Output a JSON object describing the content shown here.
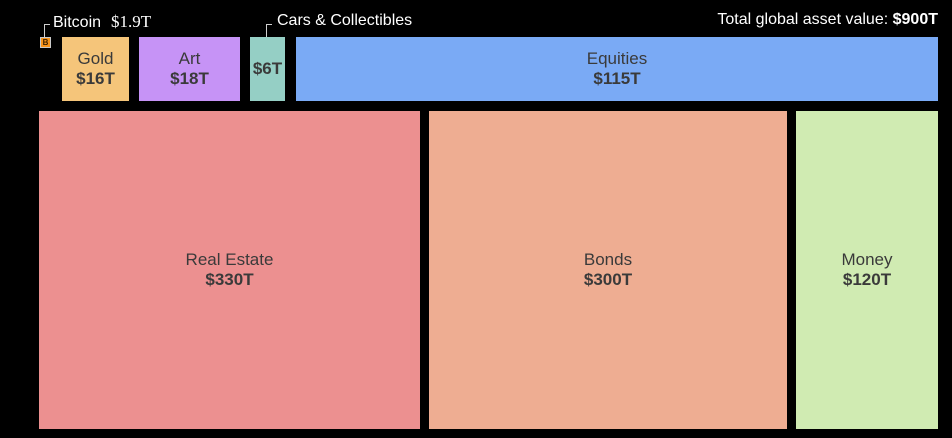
{
  "chart_data": {
    "type": "treemap",
    "unit": "T",
    "total_label": "Total global asset value:",
    "total_value": "$900T",
    "total_number": 900,
    "items": [
      {
        "name": "Bitcoin",
        "value": 1.9,
        "value_label": "$1.9T",
        "color": "#f7931a"
      },
      {
        "name": "Gold",
        "value": 16,
        "value_label": "$16T",
        "color": "#f5c57a"
      },
      {
        "name": "Art",
        "value": 18,
        "value_label": "$18T",
        "color": "#c693f6"
      },
      {
        "name": "Cars & Collectibles",
        "value": 6,
        "value_label": "$6T",
        "color": "#95cfc5"
      },
      {
        "name": "Equities",
        "value": 115,
        "value_label": "$115T",
        "color": "#7aaaf5"
      },
      {
        "name": "Real Estate",
        "value": 330,
        "value_label": "$330T",
        "color": "#ec9090"
      },
      {
        "name": "Bonds",
        "value": 300,
        "value_label": "$300T",
        "color": "#eead92"
      },
      {
        "name": "Money",
        "value": 120,
        "value_label": "$120T",
        "color": "#d0ebb2"
      }
    ],
    "bitcoin_badge_glyph": "B"
  }
}
